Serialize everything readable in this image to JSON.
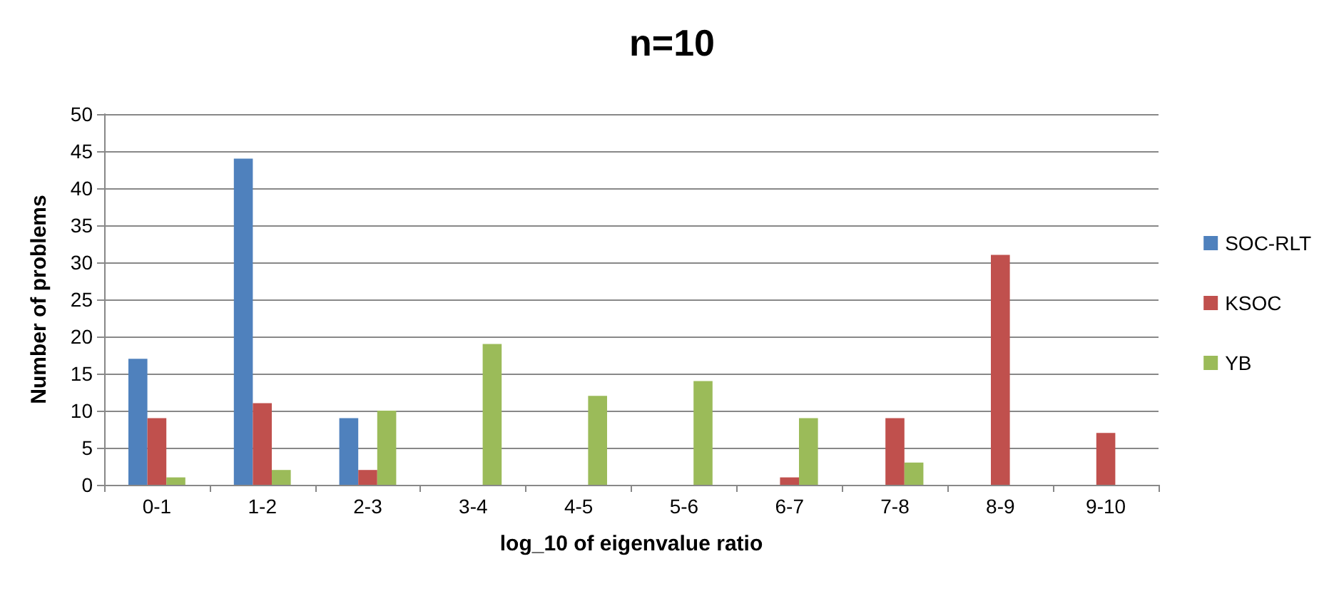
{
  "chart_data": {
    "type": "bar",
    "title": "n=10",
    "xlabel": "log_10 of eigenvalue ratio",
    "ylabel": "Number of problems",
    "categories": [
      "0-1",
      "1-2",
      "2-3",
      "3-4",
      "4-5",
      "5-6",
      "6-7",
      "7-8",
      "8-9",
      "9-10"
    ],
    "series": [
      {
        "name": "SOC-RLT",
        "color": "#4f81bd",
        "values": [
          17,
          44,
          9,
          0,
          0,
          0,
          0,
          0,
          0,
          0
        ]
      },
      {
        "name": "KSOC",
        "color": "#c0504d",
        "values": [
          9,
          11,
          2,
          0,
          0,
          0,
          1,
          9,
          31,
          7
        ]
      },
      {
        "name": "YB",
        "color": "#9bbb59",
        "values": [
          1,
          2,
          10,
          19,
          12,
          14,
          9,
          3,
          0,
          0
        ]
      }
    ],
    "ylim": [
      0,
      50
    ],
    "yticks": [
      0,
      5,
      10,
      15,
      20,
      25,
      30,
      35,
      40,
      45,
      50
    ],
    "grid": "y",
    "legend": "right"
  }
}
